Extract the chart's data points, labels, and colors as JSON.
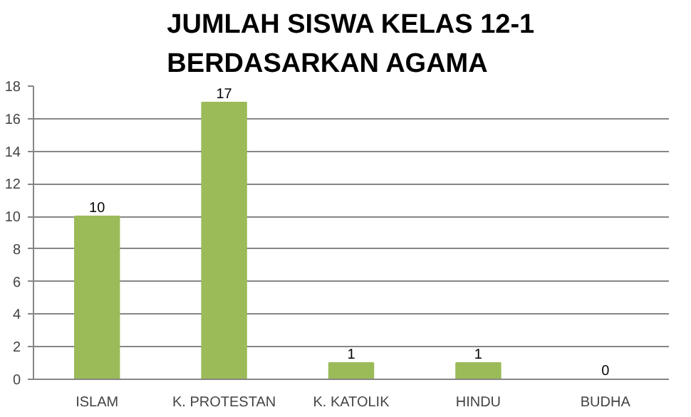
{
  "chart_data": {
    "type": "bar",
    "title": "JUMLAH SISWA KELAS 12-1\nBERDASARKAN AGAMA",
    "categories": [
      "ISLAM",
      "K. PROTESTAN",
      "K. KATOLIK",
      "HINDU",
      "BUDHA"
    ],
    "values": [
      10,
      17,
      1,
      1,
      0
    ],
    "color": "#9bbb59",
    "ylim": [
      0,
      18
    ],
    "yticks": [
      0,
      2,
      4,
      6,
      8,
      10,
      12,
      14,
      16,
      18
    ],
    "grid": "y",
    "data_labels": true
  }
}
